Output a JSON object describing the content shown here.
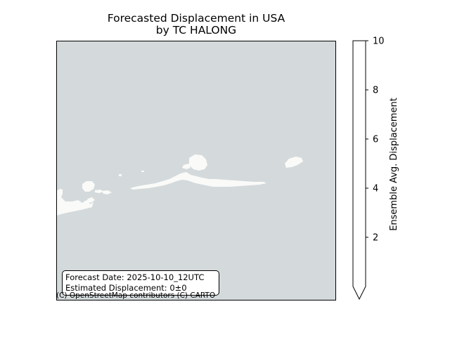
{
  "title": {
    "line1": "Forecasted Displacement in USA",
    "line2": "by TC HALONG"
  },
  "info_box": {
    "forecast_date": "Forecast Date: 2025-10-10_12UTC",
    "estimated_displacement": "Estimated Displacement: 0±0"
  },
  "attribution": "(C) OpenStreetMap contributors (C) CARTO",
  "colorbar": {
    "label": "Ensemble Avg. Displacement",
    "ticks": [
      "2",
      "4",
      "6",
      "8",
      "10"
    ],
    "range": [
      0,
      10
    ],
    "extend": "min",
    "fill_color": "#ffffff"
  },
  "map": {
    "ocean_color": "#d4dadc",
    "land_color": "#fafaf8"
  }
}
